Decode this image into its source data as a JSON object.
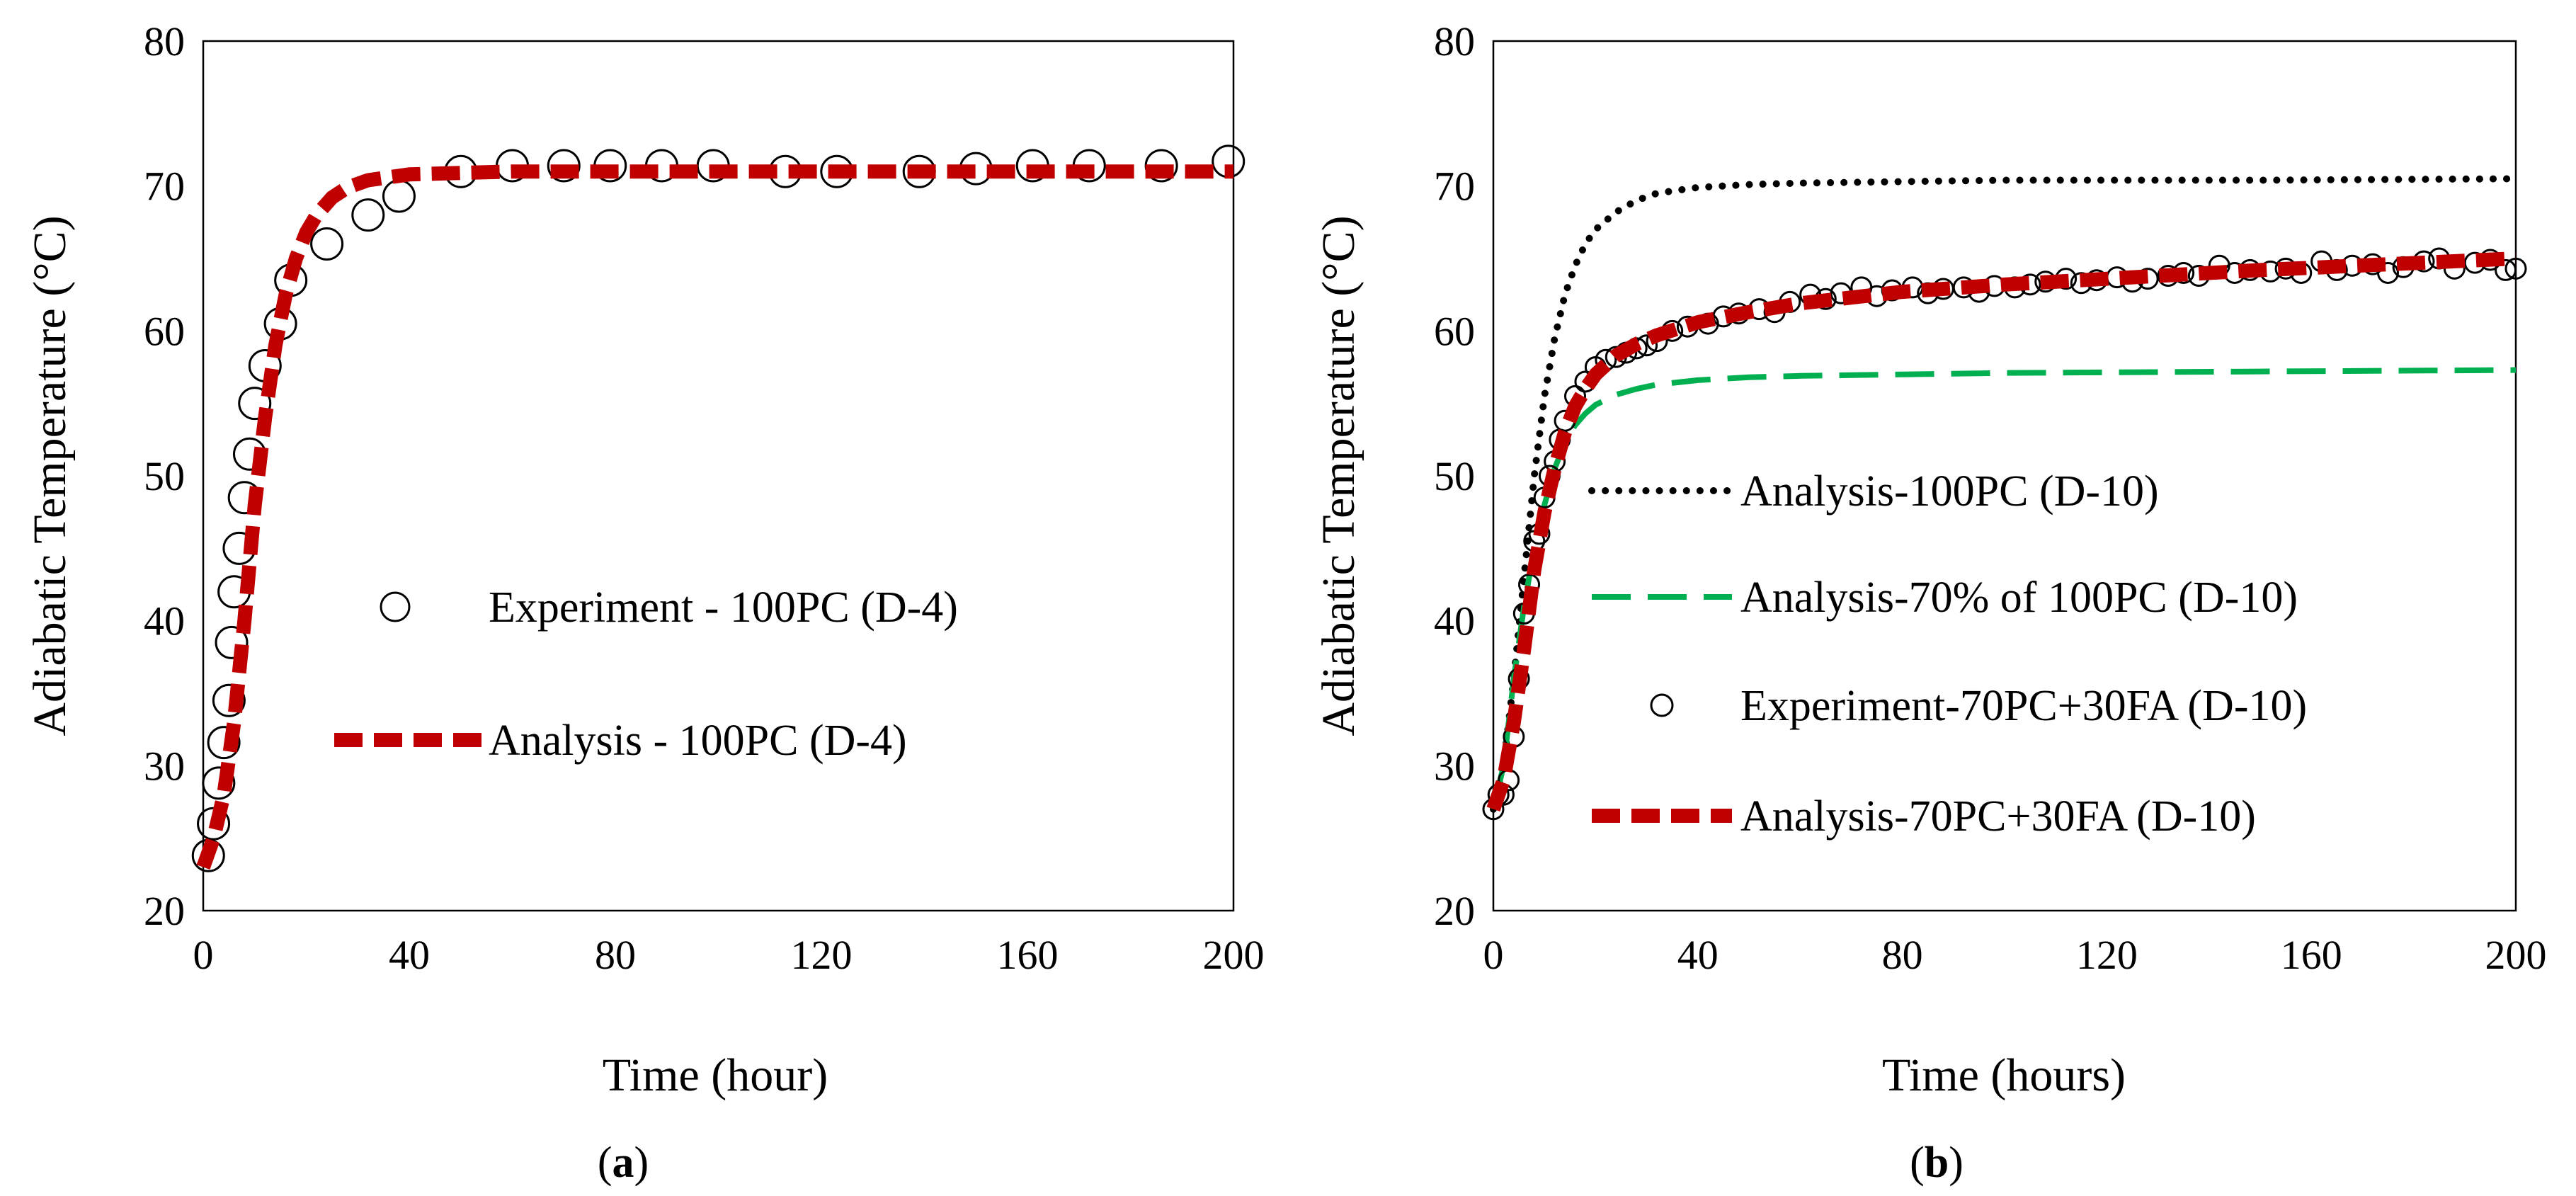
{
  "chart_data": [
    {
      "id": "a",
      "type": "line",
      "panel_label": {
        "open": "(",
        "letter": "a",
        "close": ")"
      },
      "xlabel": "Time (hour)",
      "ylabel": "Adiabatic Temperature (°C)",
      "xlim": [
        0,
        200
      ],
      "ylim": [
        20,
        80
      ],
      "xticks": [
        0,
        40,
        80,
        120,
        160,
        200
      ],
      "yticks": [
        20,
        30,
        40,
        50,
        60,
        70,
        80
      ],
      "grid": false,
      "legend_position": "center-right",
      "series": [
        {
          "name": "Experiment - 100PC (D-4)",
          "style": "circle-marker-large",
          "color": "#000000",
          "x": [
            1,
            2,
            3,
            4,
            5,
            5.5,
            6,
            7,
            8,
            9,
            10,
            12,
            15,
            17,
            24,
            32,
            38,
            50,
            60,
            70,
            79,
            89,
            99,
            113,
            123,
            139,
            150,
            161,
            172,
            186,
            199
          ],
          "y": [
            23.8,
            26,
            28.8,
            31.6,
            34.5,
            38.5,
            42,
            45,
            48.5,
            51.5,
            55,
            57.6,
            60.5,
            63.5,
            66,
            68,
            69.3,
            71,
            71.4,
            71.4,
            71.4,
            71.4,
            71.4,
            71,
            71,
            71,
            71.2,
            71.4,
            71.4,
            71.4,
            71.7
          ]
        },
        {
          "name": "Analysis - 100PC (D-4)",
          "style": "dash-thick",
          "color": "#c00000",
          "x": [
            0,
            2,
            4,
            6,
            8,
            10,
            12,
            14,
            16,
            18,
            20,
            22,
            25,
            28,
            32,
            36,
            40,
            50,
            60,
            80,
            100,
            150,
            200
          ],
          "y": [
            23,
            25,
            28,
            33,
            40,
            48,
            54,
            59,
            62.5,
            65,
            66.8,
            68,
            69.2,
            69.9,
            70.4,
            70.6,
            70.8,
            70.9,
            71,
            71,
            71,
            71,
            71
          ]
        }
      ]
    },
    {
      "id": "b",
      "type": "line",
      "panel_label": {
        "open": "(",
        "letter": "b",
        "close": ")"
      },
      "xlabel": "Time (hours)",
      "ylabel": "Adiabatic Temperature (°C)",
      "xlim": [
        0,
        200
      ],
      "ylim": [
        20,
        80
      ],
      "xticks": [
        0,
        40,
        80,
        120,
        160,
        200
      ],
      "yticks": [
        20,
        30,
        40,
        50,
        60,
        70,
        80
      ],
      "grid": false,
      "legend_position": "center-right",
      "series": [
        {
          "name": "Analysis-100PC (D-10)",
          "style": "dot",
          "color": "#000000",
          "x": [
            0,
            2,
            4,
            6,
            8,
            10,
            12,
            14,
            16,
            18,
            20,
            24,
            28,
            32,
            40,
            50,
            60,
            80,
            100,
            150,
            200
          ],
          "y": [
            27,
            30,
            36,
            43,
            50,
            55.5,
            59.5,
            62.5,
            64.5,
            66,
            67,
            68.2,
            69,
            69.5,
            69.9,
            70.1,
            70.2,
            70.3,
            70.4,
            70.4,
            70.5
          ]
        },
        {
          "name": "Analysis-70% of 100PC (D-10)",
          "style": "long-dash",
          "color": "#00b050",
          "x": [
            0,
            2,
            4,
            6,
            8,
            10,
            12,
            14,
            16,
            18,
            20,
            24,
            28,
            32,
            40,
            50,
            60,
            80,
            100,
            150,
            200
          ],
          "y": [
            27,
            30,
            36,
            41,
            45,
            48,
            50.5,
            52.3,
            53.5,
            54.3,
            54.9,
            55.6,
            56,
            56.3,
            56.6,
            56.8,
            56.9,
            57,
            57.1,
            57.2,
            57.3
          ]
        },
        {
          "name": "Experiment-70PC+30FA (D-10)",
          "style": "circle-marker-small",
          "color": "#000000",
          "x": [
            0,
            1,
            2,
            3,
            4,
            5,
            6,
            7,
            8,
            9,
            10,
            11,
            12,
            13,
            14,
            16,
            18,
            20,
            22,
            24,
            26,
            28,
            30,
            32,
            35,
            38,
            42,
            45,
            48,
            52,
            55,
            58,
            62,
            65,
            68,
            72,
            75,
            78,
            82,
            85,
            88,
            92,
            95,
            98,
            102,
            105,
            108,
            112,
            115,
            118,
            122,
            125,
            128,
            132,
            135,
            138,
            142,
            145,
            148,
            152,
            155,
            158,
            162,
            165,
            168,
            172,
            175,
            178,
            182,
            185,
            188,
            192,
            195,
            198,
            200
          ],
          "y": [
            27,
            28,
            28,
            29,
            32,
            36,
            40.5,
            42.5,
            45.5,
            46,
            48.5,
            50,
            51,
            52.5,
            53.8,
            55.5,
            56.5,
            57.5,
            58,
            58.2,
            58.5,
            58.8,
            59,
            59.3,
            60,
            60.3,
            60.5,
            61,
            61.2,
            61.5,
            61.3,
            62,
            62.5,
            62.2,
            62.6,
            63,
            62.4,
            62.8,
            63,
            62.6,
            62.9,
            63,
            62.7,
            63.1,
            63,
            63.2,
            63.4,
            63.6,
            63.3,
            63.5,
            63.7,
            63.4,
            63.6,
            63.8,
            64,
            63.8,
            64.5,
            64,
            64.2,
            64.1,
            64.3,
            64,
            64.8,
            64.2,
            64.5,
            64.6,
            64,
            64.4,
            64.8,
            65,
            64.3,
            64.7,
            64.9,
            64.2,
            64.3
          ]
        },
        {
          "name": "Analysis-70PC+30FA (D-10)",
          "style": "dash-thick",
          "color": "#c00000",
          "x": [
            0,
            2,
            4,
            6,
            8,
            10,
            12,
            14,
            16,
            18,
            20,
            24,
            28,
            32,
            40,
            50,
            60,
            80,
            100,
            120,
            150,
            200
          ],
          "y": [
            27,
            29,
            33,
            38,
            43.5,
            47.5,
            50.5,
            53,
            54.8,
            56,
            57,
            58.3,
            59.1,
            59.7,
            60.6,
            61.3,
            61.9,
            62.7,
            63.2,
            63.6,
            64.2,
            65
          ]
        }
      ]
    }
  ]
}
